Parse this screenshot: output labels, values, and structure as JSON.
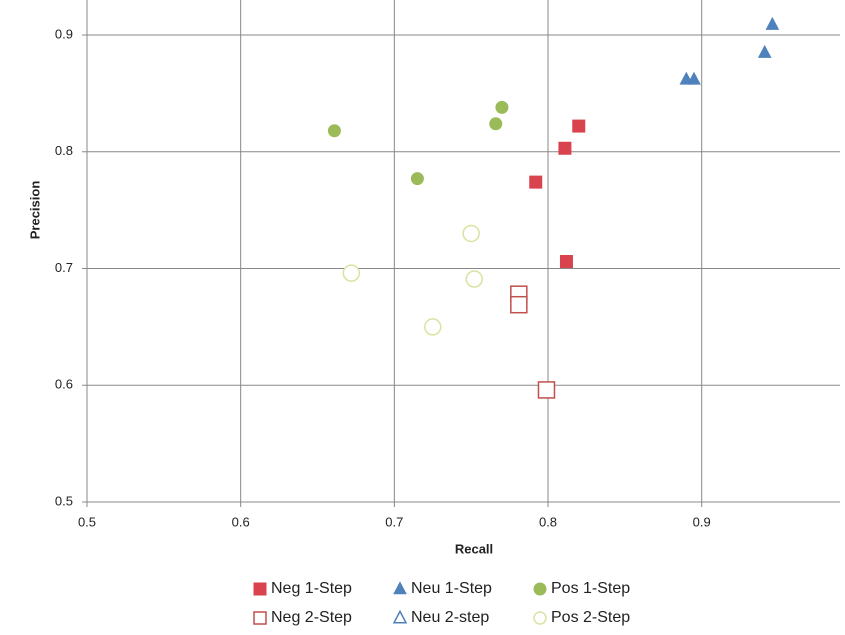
{
  "chart_data": {
    "type": "scatter",
    "x_label": "Recall",
    "y_label": "Precision",
    "xlim": [
      0.5,
      0.99
    ],
    "ylim": [
      0.5,
      0.93
    ],
    "xticks": [
      0.5,
      0.6,
      0.7,
      0.8,
      0.9
    ],
    "yticks": [
      0.5,
      0.6,
      0.7,
      0.8,
      0.9
    ],
    "grid": true,
    "legend": "bottom",
    "series": [
      {
        "name": "Neg 1-Step",
        "color": "#d9434e",
        "marker": "square",
        "filled": true,
        "x": [
          0.82,
          0.811,
          0.792,
          0.812
        ],
        "values": [
          0.822,
          0.803,
          0.774,
          0.706
        ]
      },
      {
        "name": "Neu 1-Step",
        "color": "#4f81bd",
        "marker": "triangle",
        "filled": true,
        "x": [
          0.946,
          0.941,
          0.89,
          0.895
        ],
        "values": [
          0.909,
          0.885,
          0.862,
          0.862
        ]
      },
      {
        "name": "Pos 1-Step",
        "color": "#9bbb59",
        "marker": "circle",
        "filled": true,
        "x": [
          0.661,
          0.715,
          0.766,
          0.77
        ],
        "values": [
          0.818,
          0.777,
          0.824,
          0.838
        ]
      },
      {
        "name": "Neg 2-Step",
        "color": "#c0504d",
        "marker": "square",
        "filled": false,
        "x": [
          0.781,
          0.781,
          0.799
        ],
        "values": [
          0.678,
          0.669,
          0.596
        ]
      },
      {
        "name": "Neu 2-step",
        "color": "#4f81bd",
        "marker": "triangle",
        "filled": false,
        "x": [],
        "values": []
      },
      {
        "name": "Pos 2-Step",
        "color": "#d7e4a0",
        "marker": "circle",
        "filled": false,
        "x": [
          0.672,
          0.75,
          0.752,
          0.725
        ],
        "values": [
          0.696,
          0.73,
          0.691,
          0.65
        ]
      }
    ]
  }
}
